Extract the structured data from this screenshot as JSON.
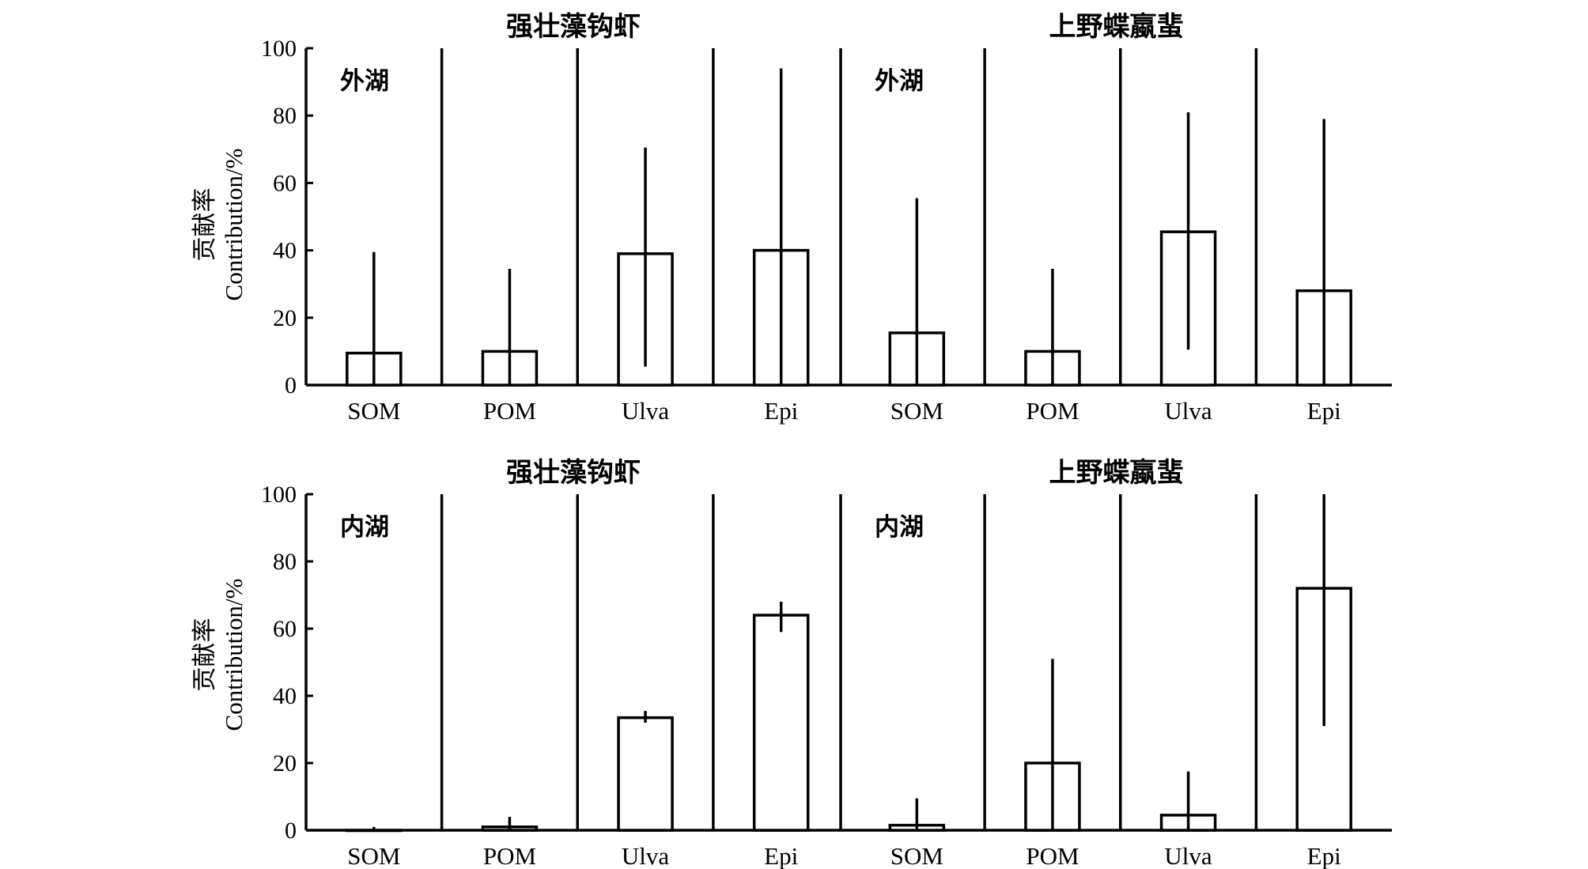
{
  "y_axis": {
    "label_cn": "贡献率",
    "label_en": "Contribution/%",
    "ticks": [
      "0",
      "20",
      "40",
      "60",
      "80",
      "100"
    ]
  },
  "chart_data": [
    {
      "type": "bar",
      "title": "强壮藻钩虾",
      "site_label": "外湖",
      "categories": [
        "SOM",
        "POM",
        "Ulva",
        "Epi"
      ],
      "values": [
        9.5,
        10,
        39,
        40
      ],
      "error_low": [
        0,
        0,
        5.5,
        0
      ],
      "error_high": [
        39.5,
        34.5,
        70.5,
        94
      ],
      "ylim": [
        0,
        100
      ]
    },
    {
      "type": "bar",
      "title": "上野蝶蠃蜚",
      "site_label": "外湖",
      "categories": [
        "SOM",
        "POM",
        "Ulva",
        "Epi"
      ],
      "values": [
        15.5,
        10,
        45.5,
        28
      ],
      "error_low": [
        0,
        0,
        10.5,
        0
      ],
      "error_high": [
        55.5,
        34.5,
        81,
        79
      ],
      "ylim": [
        0,
        100
      ]
    },
    {
      "type": "bar",
      "title": "强壮藻钩虾",
      "site_label": "内湖",
      "categories": [
        "SOM",
        "POM",
        "Ulva",
        "Epi"
      ],
      "values": [
        0,
        1,
        33.5,
        64
      ],
      "error_low": [
        0,
        0,
        32,
        59
      ],
      "error_high": [
        1,
        4,
        35.5,
        68
      ],
      "ylim": [
        0,
        100
      ]
    },
    {
      "type": "bar",
      "title": "上野蝶蠃蜚",
      "site_label": "内湖",
      "categories": [
        "SOM",
        "POM",
        "Ulva",
        "Epi"
      ],
      "values": [
        1.5,
        20,
        4.5,
        72
      ],
      "error_low": [
        0,
        0,
        0,
        31
      ],
      "error_high": [
        9.5,
        51,
        17.5,
        100
      ],
      "ylim": [
        0,
        100
      ]
    }
  ]
}
